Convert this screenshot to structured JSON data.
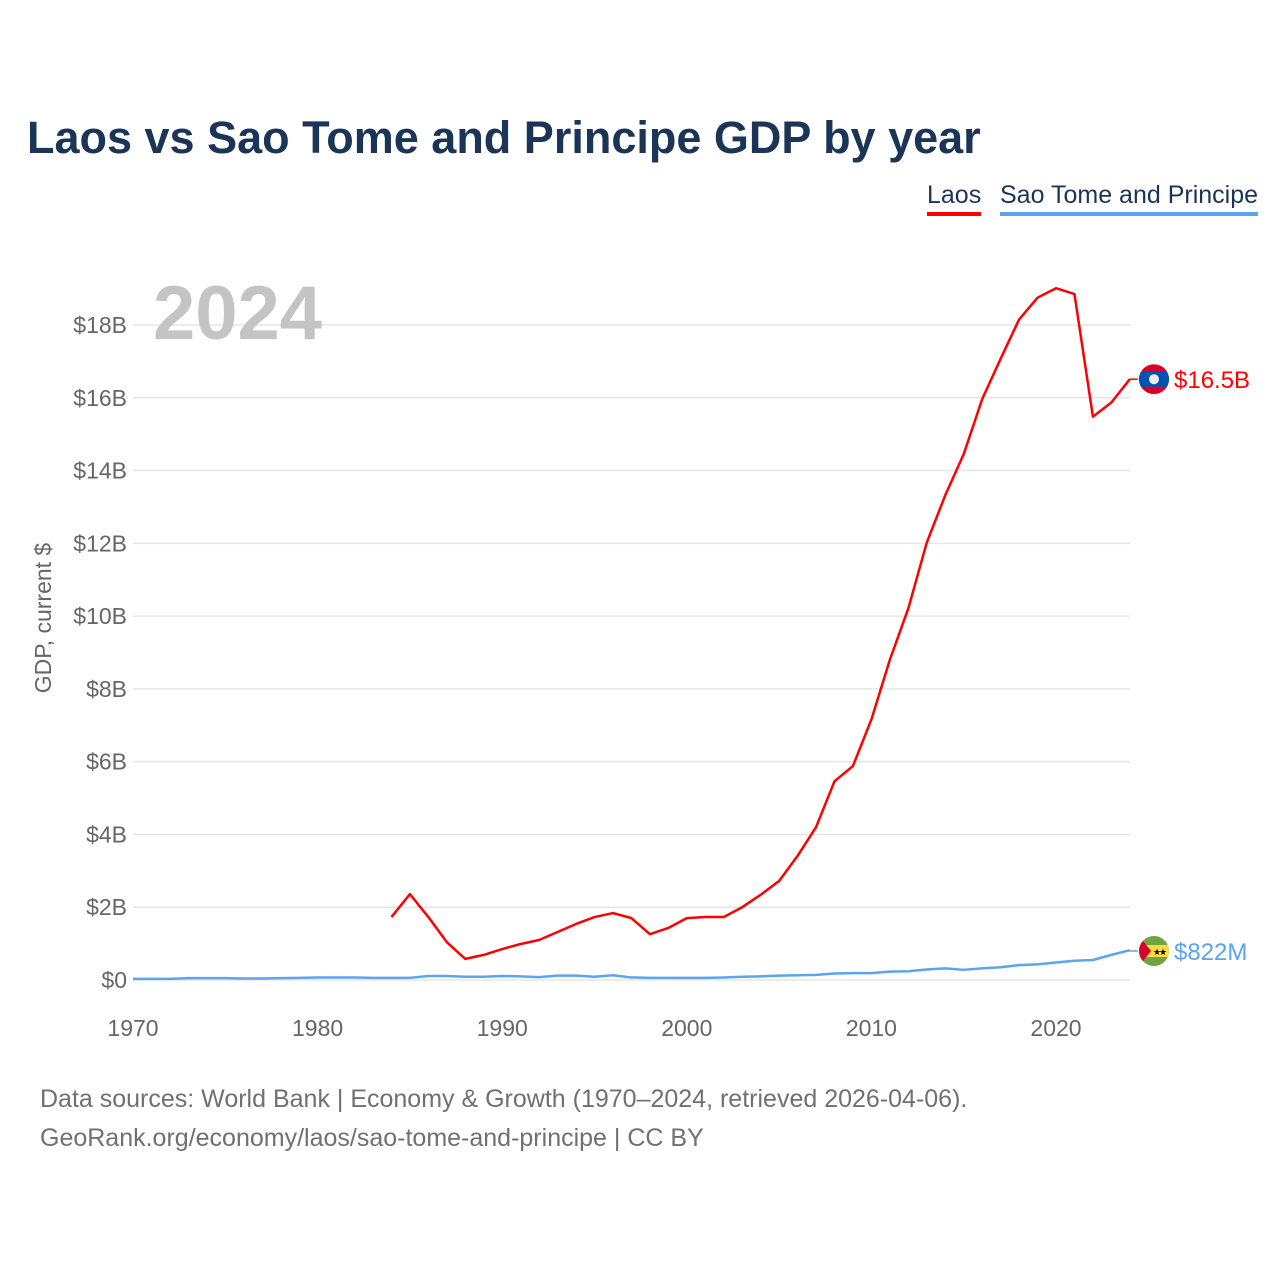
{
  "title": "Laos vs Sao Tome and Principe GDP by year",
  "footer": {
    "line1": "Data sources: World Bank | Economy & Growth (1970–2024, retrieved 2026-04-06).",
    "line2": "GeoRank.org/economy/laos/sao-tome-and-principe | CC BY"
  },
  "chart_data": {
    "type": "line",
    "title": "Laos vs Sao Tome and Principe GDP by year",
    "ylabel": "GDP, current $",
    "xlabel": "",
    "year_label": "2024",
    "xlim": [
      1970,
      2024
    ],
    "ylim": [
      0,
      19.5
    ],
    "x_ticks": [
      "1970",
      "1980",
      "1990",
      "2000",
      "2010",
      "2020"
    ],
    "y_ticks": [
      {
        "value": 0,
        "label": "$0"
      },
      {
        "value": 2,
        "label": "$2B"
      },
      {
        "value": 4,
        "label": "$4B"
      },
      {
        "value": 6,
        "label": "$6B"
      },
      {
        "value": 8,
        "label": "$8B"
      },
      {
        "value": 10,
        "label": "$10B"
      },
      {
        "value": 12,
        "label": "$12B"
      },
      {
        "value": 14,
        "label": "$14B"
      },
      {
        "value": 16,
        "label": "$16B"
      },
      {
        "value": 18,
        "label": "$18B"
      }
    ],
    "grid": true,
    "legend_position": "top-right",
    "units": "billions USD",
    "series": [
      {
        "name": "Laos",
        "color": "#ff0000",
        "end_label": "$16.5B",
        "flag": "laos-flag",
        "x": [
          1984,
          1985,
          1986,
          1987,
          1988,
          1989,
          1990,
          1991,
          1992,
          1993,
          1994,
          1995,
          1996,
          1997,
          1998,
          1999,
          2000,
          2001,
          2002,
          2003,
          2004,
          2005,
          2006,
          2007,
          2008,
          2009,
          2010,
          2011,
          2012,
          2013,
          2014,
          2015,
          2016,
          2017,
          2018,
          2019,
          2020,
          2021,
          2022,
          2023,
          2024
        ],
        "values": [
          1.73,
          2.36,
          1.73,
          1.04,
          0.58,
          0.69,
          0.85,
          0.99,
          1.1,
          1.32,
          1.54,
          1.73,
          1.84,
          1.7,
          1.26,
          1.43,
          1.7,
          1.73,
          1.73,
          2.0,
          2.34,
          2.72,
          3.41,
          4.2,
          5.46,
          5.88,
          7.16,
          8.8,
          10.21,
          12.02,
          13.32,
          14.45,
          15.96,
          17.07,
          18.15,
          18.75,
          19.01,
          18.85,
          15.48,
          15.87,
          16.51
        ]
      },
      {
        "name": "Sao Tome and Principe",
        "color": "#5ba4ee",
        "end_label": "$822M",
        "flag": "sao-tome-flag",
        "x": [
          1970,
          1971,
          1972,
          1973,
          1974,
          1975,
          1976,
          1977,
          1978,
          1979,
          1980,
          1981,
          1982,
          1983,
          1984,
          1985,
          1986,
          1987,
          1988,
          1989,
          1990,
          1991,
          1992,
          1993,
          1994,
          1995,
          1996,
          1997,
          1998,
          1999,
          2000,
          2001,
          2002,
          2003,
          2004,
          2005,
          2006,
          2007,
          2008,
          2009,
          2010,
          2011,
          2012,
          2013,
          2014,
          2015,
          2016,
          2017,
          2018,
          2019,
          2020,
          2021,
          2022,
          2023,
          2024
        ],
        "values": [
          0.03,
          0.03,
          0.03,
          0.05,
          0.05,
          0.05,
          0.04,
          0.04,
          0.05,
          0.06,
          0.07,
          0.07,
          0.07,
          0.06,
          0.06,
          0.06,
          0.11,
          0.11,
          0.09,
          0.09,
          0.11,
          0.1,
          0.08,
          0.12,
          0.12,
          0.09,
          0.13,
          0.07,
          0.06,
          0.06,
          0.06,
          0.06,
          0.07,
          0.09,
          0.1,
          0.12,
          0.13,
          0.14,
          0.18,
          0.19,
          0.19,
          0.23,
          0.24,
          0.29,
          0.32,
          0.28,
          0.32,
          0.35,
          0.41,
          0.43,
          0.48,
          0.53,
          0.55,
          0.69,
          0.82
        ]
      }
    ]
  }
}
